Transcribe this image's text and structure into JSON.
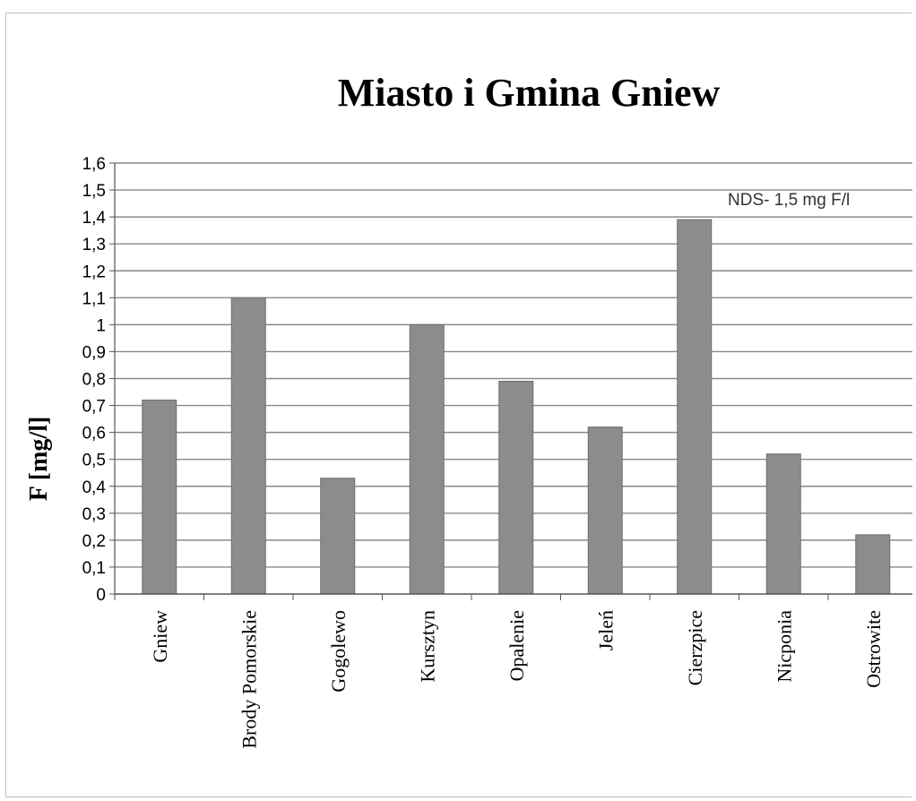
{
  "chart_data": {
    "type": "bar",
    "title": "Miasto i Gmina Gniew",
    "xlabel": "",
    "ylabel": "F [mg/l]",
    "categories": [
      "Gniew",
      "Brody Pomorskie",
      "Gogolewo",
      "Kursztyn",
      "Opalenie",
      "Jeleń",
      "Cierzpice",
      "Nicponia",
      "Ostrowite"
    ],
    "values": [
      0.72,
      1.1,
      0.43,
      1.0,
      0.79,
      0.62,
      1.39,
      0.52,
      0.22
    ],
    "ylim": [
      0,
      1.6
    ],
    "yticks": [
      "0",
      "0,1",
      "0,2",
      "0,3",
      "0,4",
      "0,5",
      "0,6",
      "0,7",
      "0,8",
      "0,9",
      "1",
      "1,1",
      "1,2",
      "1,3",
      "1,4",
      "1,5",
      "1,6"
    ],
    "annotation": "NDS- 1,5 mg F/l",
    "grid": true,
    "legend": "none",
    "bar_color": "#8c8c8c"
  }
}
